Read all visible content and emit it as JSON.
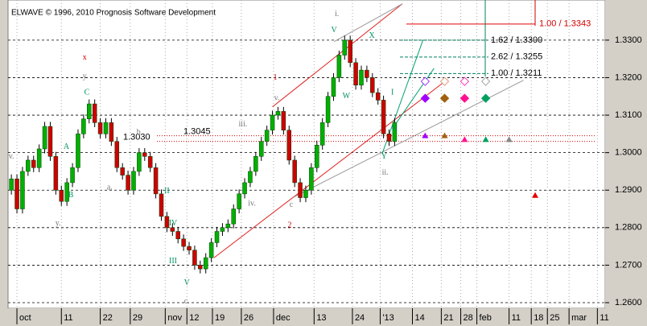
{
  "chart_data": {
    "type": "candlestick",
    "title": "ELWAVE © 1996, 2010 Prognosis Software Development",
    "open": [
      1.29,
      1.293,
      1.285,
      1.295,
      1.298,
      1.296,
      1.301,
      1.307,
      1.299,
      1.29,
      1.287,
      1.292,
      1.296,
      1.305,
      1.309,
      1.313,
      1.308,
      1.305,
      1.308,
      1.303,
      1.296,
      1.294,
      1.29,
      1.295,
      1.3,
      1.299,
      1.296,
      1.289,
      1.283,
      1.28,
      1.279,
      1.277,
      1.275,
      1.274,
      1.27,
      1.269,
      1.272,
      1.276,
      1.279,
      1.28,
      1.281,
      1.285,
      1.289,
      1.292,
      1.295,
      1.299,
      1.303,
      1.306,
      1.31,
      1.311,
      1.306,
      1.298,
      1.292,
      1.288,
      1.29,
      1.296,
      1.302,
      1.308,
      1.315,
      1.32,
      1.326,
      1.33,
      1.324,
      1.318,
      1.322,
      1.32,
      1.316,
      1.314,
      1.305,
      1.303
    ],
    "high": [
      1.2942,
      1.2942,
      1.2962,
      1.2992,
      1.2992,
      1.3022,
      1.3082,
      1.3082,
      1.3002,
      1.2912,
      1.2932,
      1.2972,
      1.3062,
      1.3102,
      1.3142,
      1.3142,
      1.3092,
      1.3092,
      1.3092,
      1.3042,
      1.2972,
      1.2952,
      1.2962,
      1.3012,
      1.3012,
      1.3002,
      1.2972,
      1.2902,
      1.2842,
      1.2812,
      1.2802,
      1.2782,
      1.2762,
      1.2752,
      1.2712,
      1.2732,
      1.2772,
      1.2802,
      1.2812,
      1.2822,
      1.2862,
      1.2902,
      1.2932,
      1.2962,
      1.3002,
      1.3042,
      1.3072,
      1.3112,
      1.3122,
      1.3122,
      1.3072,
      1.2992,
      1.2932,
      1.2912,
      1.2972,
      1.3032,
      1.3092,
      1.3162,
      1.3212,
      1.3272,
      1.3312,
      1.3312,
      1.3252,
      1.3232,
      1.3232,
      1.3212,
      1.3172,
      1.3152,
      1.3062,
      1.3092
    ],
    "low": [
      1.2888,
      1.2838,
      1.2838,
      1.2938,
      1.2948,
      1.2948,
      1.2998,
      1.2978,
      1.2888,
      1.2858,
      1.2858,
      1.2908,
      1.2948,
      1.3038,
      1.3078,
      1.3068,
      1.3038,
      1.3038,
      1.3018,
      1.2948,
      1.2928,
      1.2888,
      1.2888,
      1.2938,
      1.2978,
      1.2948,
      1.2878,
      1.2818,
      1.2788,
      1.2778,
      1.2758,
      1.2738,
      1.2728,
      1.2688,
      1.2678,
      1.2678,
      1.2708,
      1.2748,
      1.2778,
      1.2788,
      1.2798,
      1.2838,
      1.2878,
      1.2908,
      1.2938,
      1.2978,
      1.3018,
      1.3048,
      1.3088,
      1.3048,
      1.2968,
      1.2908,
      1.2868,
      1.2868,
      1.2888,
      1.2948,
      1.3008,
      1.3068,
      1.3138,
      1.3188,
      1.3248,
      1.3228,
      1.3168,
      1.3168,
      1.3188,
      1.3148,
      1.3128,
      1.3038,
      1.3018,
      1.3018
    ],
    "close": [
      1.293,
      1.285,
      1.295,
      1.298,
      1.296,
      1.301,
      1.307,
      1.299,
      1.29,
      1.287,
      1.292,
      1.296,
      1.305,
      1.309,
      1.313,
      1.308,
      1.305,
      1.308,
      1.303,
      1.296,
      1.294,
      1.29,
      1.295,
      1.3,
      1.299,
      1.296,
      1.289,
      1.283,
      1.28,
      1.279,
      1.277,
      1.275,
      1.274,
      1.27,
      1.269,
      1.272,
      1.276,
      1.279,
      1.28,
      1.281,
      1.285,
      1.289,
      1.292,
      1.295,
      1.299,
      1.303,
      1.306,
      1.31,
      1.311,
      1.306,
      1.298,
      1.292,
      1.288,
      1.29,
      1.296,
      1.302,
      1.308,
      1.315,
      1.32,
      1.326,
      1.33,
      1.324,
      1.318,
      1.322,
      1.32,
      1.316,
      1.314,
      1.305,
      1.303,
      1.308
    ],
    "up_color": "#00b000",
    "down_color": "#d00000",
    "ylim": [
      1.2585,
      1.3407
    ],
    "xlim": [
      -0.6,
      106.9
    ],
    "yticks": [
      {
        "value": 1.26,
        "label": "1.2600"
      },
      {
        "value": 1.27,
        "label": "1.2700"
      },
      {
        "value": 1.28,
        "label": "1.2800"
      },
      {
        "value": 1.29,
        "label": "1.2900"
      },
      {
        "value": 1.3,
        "label": "1.3000"
      },
      {
        "value": 1.31,
        "label": "1.3100"
      },
      {
        "value": 1.32,
        "label": "1.3200"
      },
      {
        "value": 1.33,
        "label": "1.3300"
      }
    ],
    "xticks": [
      {
        "value": 1,
        "label": "oct"
      },
      {
        "value": 9,
        "label": "11"
      },
      {
        "value": 16,
        "label": "22"
      },
      {
        "value": 21.4,
        "label": "29"
      },
      {
        "value": 27.7,
        "label": "nov"
      },
      {
        "value": 31.6,
        "label": "12"
      },
      {
        "value": 36.2,
        "label": "19"
      },
      {
        "value": 41.4,
        "label": "26"
      },
      {
        "value": 47.2,
        "label": "dec"
      },
      {
        "value": 54.5,
        "label": "13"
      },
      {
        "value": 61.4,
        "label": "24"
      },
      {
        "value": 66.4,
        "label": "'13"
      },
      {
        "value": 72.2,
        "label": "14"
      },
      {
        "value": 77.4,
        "label": "21"
      },
      {
        "value": 80.9,
        "label": "28"
      },
      {
        "value": 83.8,
        "label": "feb"
      },
      {
        "value": 89.6,
        "label": "11"
      },
      {
        "value": 93.6,
        "label": "18"
      },
      {
        "value": 96.5,
        "label": "25"
      },
      {
        "value": 100.4,
        "label": "mar"
      },
      {
        "value": 105.5,
        "label": "11"
      }
    ],
    "grid": true,
    "levels": [
      {
        "value": 1.3045,
        "label": "1.3045",
        "color": "#d00000"
      },
      {
        "value": 1.303,
        "label": "1.3030",
        "color": "#d00000"
      }
    ],
    "targets": [
      {
        "value": 1.3343,
        "label": "1.00 / 1.3343",
        "color": "#e00000"
      },
      {
        "value": 1.33,
        "label": "1.62 / 1.3300",
        "color": "#008060"
      },
      {
        "value": 1.3255,
        "label": "2.62 / 1.3255",
        "color": "#008060"
      },
      {
        "value": 1.3211,
        "label": "1.00 / 1.3211",
        "color": "#008060"
      }
    ],
    "lines": [
      {
        "x": [
          36.5,
          78.5
        ],
        "y": [
          1.272,
          1.3195
        ],
        "color": "#e02020"
      },
      {
        "x": [
          47,
          70.4
        ],
        "y": [
          1.3122,
          1.3397
        ],
        "color": "#e02020"
      },
      {
        "x": [
          58.1,
          70.4
        ],
        "y": [
          1.3296,
          1.3397
        ],
        "color": "#999999"
      },
      {
        "x": [
          50.9,
          92.2
        ],
        "y": [
          1.2882,
          1.3193
        ],
        "color": "#999999"
      },
      {
        "x": [
          66.8,
          74.1
        ],
        "y": [
          1.2999,
          1.33
        ],
        "color": "#00a070"
      },
      {
        "x": [
          68.6,
          76.1
        ],
        "y": [
          1.3064,
          1.3225
        ],
        "color": "#00a070"
      }
    ],
    "markers": [
      {
        "x": 74.5,
        "y": 1.319,
        "shape": "diamond-open",
        "color": "#a040ff"
      },
      {
        "x": 78,
        "y": 1.319,
        "shape": "diamond-open",
        "color": "#e0a080"
      },
      {
        "x": 81.6,
        "y": 1.319,
        "shape": "diamond-open",
        "color": "#ff40c0"
      },
      {
        "x": 85.4,
        "y": 1.319,
        "shape": "diamond-open",
        "color": "#aaaaaa"
      },
      {
        "x": 74.5,
        "y": 1.3145,
        "shape": "diamond",
        "color": "#a000ff"
      },
      {
        "x": 78,
        "y": 1.3145,
        "shape": "diamond",
        "color": "#a06010"
      },
      {
        "x": 81.6,
        "y": 1.3145,
        "shape": "diamond",
        "color": "#ff1090"
      },
      {
        "x": 85.4,
        "y": 1.3145,
        "shape": "diamond",
        "color": "#00a060"
      },
      {
        "x": 74.5,
        "y": 1.3045,
        "shape": "triangle",
        "color": "#a000ff"
      },
      {
        "x": 78,
        "y": 1.3045,
        "shape": "triangle",
        "color": "#a06010"
      },
      {
        "x": 81.6,
        "y": 1.3035,
        "shape": "triangle",
        "color": "#ff1090"
      },
      {
        "x": 85.4,
        "y": 1.3035,
        "shape": "triangle",
        "color": "#00a060"
      },
      {
        "x": 89.6,
        "y": 1.3035,
        "shape": "triangle",
        "color": "#888888"
      },
      {
        "x": 94.3,
        "y": 1.2886,
        "shape": "triangle",
        "color": "#e00000"
      }
    ],
    "wave_labels": [
      {
        "text": "x",
        "x": 13.2,
        "y": 1.3253,
        "color": "#d00000"
      },
      {
        "text": "y",
        "x": 13.2,
        "y": 1.3203,
        "color": "#777777"
      },
      {
        "text": "C",
        "x": 13.6,
        "y": 1.316,
        "color": "#009060"
      },
      {
        "text": "A",
        "x": 9.9,
        "y": 1.3015,
        "color": "#009060"
      },
      {
        "text": "B",
        "x": 10.7,
        "y": 1.2886,
        "color": "#009060"
      },
      {
        "text": "v.",
        "x": 0,
        "y": 1.2989,
        "color": "#777777"
      },
      {
        "text": "y.",
        "x": 8.4,
        "y": 1.2811,
        "color": "#777777"
      },
      {
        "text": "a.",
        "x": 17.7,
        "y": 1.2907,
        "color": "#777777"
      },
      {
        "text": "b",
        "x": 22.9,
        "y": 1.3053,
        "color": "#777777"
      },
      {
        "text": "c.",
        "x": 31.6,
        "y": 1.2603,
        "color": "#777777"
      },
      {
        "text": "V",
        "x": 31.6,
        "y": 1.2652,
        "color": "#009060"
      },
      {
        "text": "III",
        "x": 29.1,
        "y": 1.271,
        "color": "#009060"
      },
      {
        "text": "IV",
        "x": 29.1,
        "y": 1.2811,
        "color": "#009060"
      },
      {
        "text": "II",
        "x": 28,
        "y": 1.2897,
        "color": "#009060"
      },
      {
        "text": "iii.",
        "x": 41.7,
        "y": 1.3075,
        "color": "#777777"
      },
      {
        "text": "1",
        "x": 47.5,
        "y": 1.3199,
        "color": "#d00000"
      },
      {
        "text": "2",
        "x": 50.1,
        "y": 1.2806,
        "color": "#d00000"
      },
      {
        "text": "iv.",
        "x": 43.3,
        "y": 1.2864,
        "color": "#777777"
      },
      {
        "text": "c",
        "x": 50.4,
        "y": 1.286,
        "color": "#777777"
      },
      {
        "text": "v.",
        "x": 47.8,
        "y": 1.3145,
        "color": "#777777"
      },
      {
        "text": "V",
        "x": 58.1,
        "y": 1.3326,
        "color": "#009060"
      },
      {
        "text": "W",
        "x": 60.3,
        "y": 1.315,
        "color": "#009060"
      },
      {
        "text": "X",
        "x": 64.9,
        "y": 1.3311,
        "color": "#009060"
      },
      {
        "text": "i.",
        "x": 58.6,
        "y": 1.3369,
        "color": "#777777"
      },
      {
        "text": "Y",
        "x": 67.1,
        "y": 1.2989,
        "color": "#009060"
      },
      {
        "text": "ii.",
        "x": 67.3,
        "y": 1.2946,
        "color": "#777777"
      },
      {
        "text": "I",
        "x": 68.6,
        "y": 1.316,
        "color": "#009060"
      },
      {
        "text": "II",
        "x": 69,
        "y": 1.3064,
        "color": "#009060"
      }
    ]
  }
}
